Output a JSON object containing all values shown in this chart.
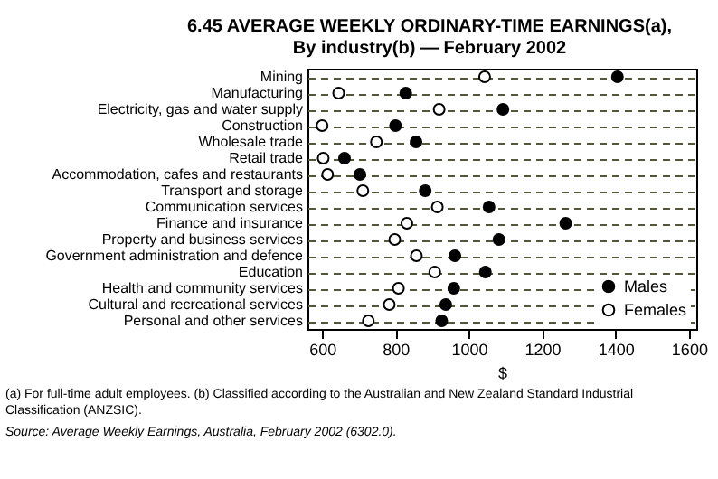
{
  "chart_data": {
    "type": "scatter",
    "title": "6.45  AVERAGE WEEKLY ORDINARY-TIME EARNINGS(a),\nBy industry(b) — February 2002",
    "xlabel": "$",
    "categories": [
      "Mining",
      "Manufacturing",
      "Electricity, gas and water supply",
      "Construction",
      "Wholesale trade",
      "Retail trade",
      "Accommodation, cafes and restaurants",
      "Transport and storage",
      "Communication services",
      "Finance and insurance",
      "Property and business services",
      "Government administration and defence",
      "Education",
      "Health and community services",
      "Cultural and recreational services",
      "Personal and other services"
    ],
    "orientation": "horizontal",
    "xlim": [
      560,
      1620
    ],
    "xticks": [
      600,
      800,
      1000,
      1200,
      1400,
      1600
    ],
    "grid": "y",
    "legend": "bottom right",
    "marker": "circle",
    "series": [
      {
        "name": "Males",
        "color": "#000000",
        "values": [
          1405,
          828,
          1093,
          800,
          856,
          661,
          703,
          881,
          1055,
          1264,
          1082,
          962,
          1045,
          959,
          937,
          926
        ]
      },
      {
        "name": "Females",
        "color": "#ffffff",
        "values": [
          1043,
          645,
          919,
          600,
          748,
          603,
          615,
          711,
          914,
          831,
          798,
          857,
          907,
          808,
          783,
          726
        ]
      }
    ],
    "annotations": [
      "(a) For full-time adult employees. (b) Classified according to the Australian and New Zealand Standard Industrial Classification (ANZSIC).",
      "Source: Average Weekly Earnings, Australia, February 2002 (6302.0)."
    ]
  }
}
